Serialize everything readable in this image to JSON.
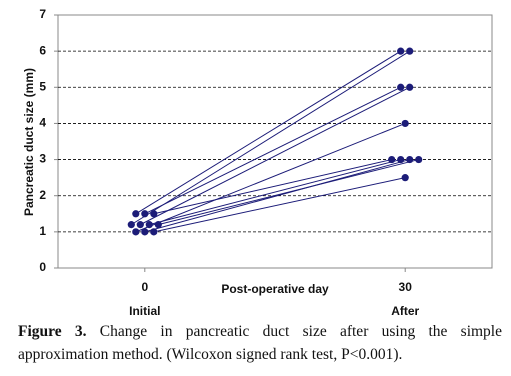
{
  "chart_data": {
    "type": "paired-line",
    "y_label": "Pancreatic duct size (mm)",
    "x_label": "Post-operative day",
    "x": [
      0,
      30
    ],
    "x_sublabels": [
      "Initial",
      "After"
    ],
    "xlim": [
      -10,
      40
    ],
    "xticks": [
      0,
      30
    ],
    "ylim": [
      0,
      7
    ],
    "yticks": [
      0,
      1,
      2,
      3,
      4,
      5,
      6,
      7
    ],
    "grid": true,
    "color": "#1c1c78",
    "series": [
      {
        "values": [
          1.5,
          6
        ]
      },
      {
        "values": [
          1.2,
          6
        ]
      },
      {
        "values": [
          1.5,
          5
        ]
      },
      {
        "values": [
          1.2,
          5
        ]
      },
      {
        "values": [
          1.0,
          4
        ]
      },
      {
        "values": [
          1.5,
          3
        ]
      },
      {
        "values": [
          1.2,
          3
        ]
      },
      {
        "values": [
          1.0,
          3
        ]
      },
      {
        "values": [
          1.2,
          3
        ]
      },
      {
        "values": [
          1.0,
          2.5
        ]
      }
    ]
  },
  "caption": {
    "label": "Figure 3.",
    "text": "Change in pancreatic duct size after using the simple approximation method. (Wilcoxon signed rank test, P<0.001)."
  }
}
